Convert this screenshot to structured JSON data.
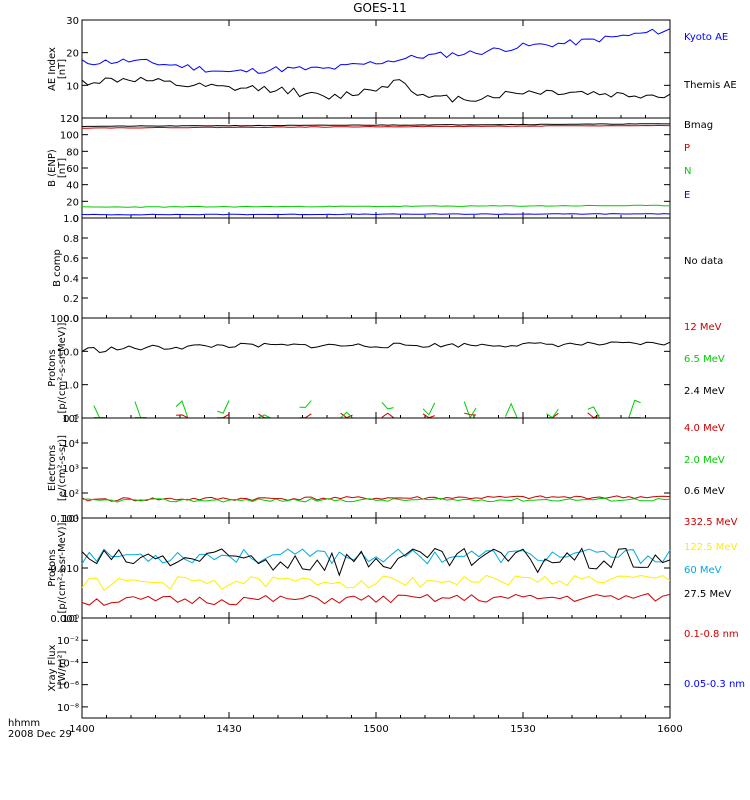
{
  "title": "GOES-11",
  "footer": {
    "line1": "hhmm",
    "line2": "2008 Dec 29"
  },
  "x_ticks": [
    "1400",
    "1430",
    "1500",
    "1530",
    "1600"
  ],
  "chart_data": [
    {
      "type": "line",
      "ylabel": [
        "AE Index",
        "[nT]"
      ],
      "ylim": [
        0,
        30
      ],
      "y_ticks": [
        "0",
        "10",
        "20",
        "30"
      ],
      "series": [
        {
          "name": "Kyoto AE",
          "color": "#0000ff",
          "mode": "trend",
          "anchors": [
            [
              0,
              17
            ],
            [
              10,
              17.5
            ],
            [
              20,
              16
            ],
            [
              30,
              14
            ],
            [
              40,
              15
            ],
            [
              50,
              15
            ],
            [
              60,
              17
            ],
            [
              70,
              19
            ],
            [
              80,
              20
            ],
            [
              90,
              22
            ],
            [
              100,
              23
            ],
            [
              110,
              25
            ],
            [
              120,
              27
            ],
            [
              120,
              30
            ]
          ],
          "amp": 1.0,
          "seed": 11
        },
        {
          "name": "Themis AE",
          "color": "#000000",
          "mode": "trend",
          "anchors": [
            [
              0,
              11
            ],
            [
              10,
              12
            ],
            [
              20,
              10
            ],
            [
              30,
              9
            ],
            [
              40,
              9
            ],
            [
              50,
              6
            ],
            [
              60,
              9
            ],
            [
              65,
              12
            ],
            [
              70,
              6
            ],
            [
              80,
              6
            ],
            [
              90,
              8
            ],
            [
              100,
              8
            ],
            [
              110,
              7
            ],
            [
              120,
              7
            ]
          ],
          "amp": 1.2,
          "seed": 12
        }
      ]
    },
    {
      "type": "line",
      "ylabel": [
        "B (ENP)",
        "[nT]"
      ],
      "ylim": [
        0,
        120
      ],
      "y_ticks": [
        "0",
        "20",
        "40",
        "60",
        "80",
        "100",
        "120"
      ],
      "series": [
        {
          "name": "Bmag",
          "color": "#000000",
          "mode": "trend",
          "anchors": [
            [
              0,
              110
            ],
            [
              120,
              113
            ]
          ],
          "amp": 0.3,
          "seed": 21
        },
        {
          "name": "P",
          "color": "#cc0000",
          "mode": "trend",
          "anchors": [
            [
              0,
              108
            ],
            [
              120,
              111
            ]
          ],
          "amp": 0.3,
          "seed": 22
        },
        {
          "name": "N",
          "color": "#00cc00",
          "mode": "trend",
          "anchors": [
            [
              0,
              13
            ],
            [
              120,
              15
            ]
          ],
          "amp": 0.5,
          "seed": 23
        },
        {
          "name": "E",
          "color": "#0000ff",
          "mode": "trend",
          "anchors": [
            [
              0,
              4
            ],
            [
              120,
              5
            ]
          ],
          "amp": 0.4,
          "seed": 24
        }
      ]
    },
    {
      "type": "line",
      "ylabel": [
        "B comp"
      ],
      "ylim": [
        0,
        1
      ],
      "y_ticks": [
        "0.0",
        "0.2",
        "0.4",
        "0.6",
        "0.8",
        "1.0"
      ],
      "series": [],
      "legend_text": [
        {
          "label": "No data",
          "color": "#000000"
        }
      ]
    },
    {
      "type": "line",
      "ylabel": [
        "Protons",
        "[p/(cm²-s-sr-MeV)]"
      ],
      "ylim": [
        0.1,
        100
      ],
      "log": true,
      "y_ticks": [
        "0.1",
        "1.0",
        "10.0",
        "100.0"
      ],
      "series": [
        {
          "name": "12 MeV",
          "color": "#cc0000",
          "mode": "sparse",
          "anchors": [
            [
              0,
              0.1
            ],
            [
              120,
              0.1
            ]
          ],
          "amp": 0.05,
          "seed": 31
        },
        {
          "name": "6.5 MeV",
          "color": "#00cc00",
          "mode": "sparse",
          "anchors": [
            [
              0,
              0.2
            ],
            [
              120,
              0.2
            ]
          ],
          "amp": 0.15,
          "seed": 32
        },
        {
          "name": "2.4 MeV",
          "color": "#000000",
          "mode": "trend",
          "anchors": [
            [
              0,
              11
            ],
            [
              30,
              15
            ],
            [
              60,
              15
            ],
            [
              90,
              16
            ],
            [
              120,
              17
            ]
          ],
          "amp": 2.5,
          "seed": 33
        }
      ]
    },
    {
      "type": "line",
      "ylabel": [
        "Electrons",
        "[e/(cm²-s-sr)]"
      ],
      "ylim": [
        10,
        100000
      ],
      "log": true,
      "y_ticks": [
        "10¹",
        "10²",
        "10³",
        "10⁴",
        "10⁵"
      ],
      "series": [
        {
          "name": "4.0 MeV",
          "color": "#cc0000",
          "mode": "trend",
          "anchors": [
            [
              0,
              55
            ],
            [
              120,
              70
            ]
          ],
          "amp": 10,
          "seed": 41
        },
        {
          "name": "2.0 MeV",
          "color": "#00cc00",
          "mode": "trend",
          "anchors": [
            [
              0,
              50
            ],
            [
              120,
              55
            ]
          ],
          "amp": 8,
          "seed": 42
        },
        {
          "name": "0.6 MeV",
          "color": "#000000",
          "mode": "trend",
          "anchors": [
            [
              0,
              100000
            ],
            [
              120,
              100000
            ]
          ],
          "amp": 0,
          "seed": 43
        }
      ]
    },
    {
      "type": "line",
      "ylabel": [
        "Protons",
        "[p/(cm²-s-sr-MeV)]"
      ],
      "ylim": [
        0.001,
        0.1
      ],
      "log": true,
      "y_ticks": [
        "0.001",
        "0.010",
        "0.100"
      ],
      "series": [
        {
          "name": "332.5 MeV",
          "color": "#cc0000",
          "mode": "noisy",
          "anchors": [
            [
              0,
              0.0022
            ],
            [
              120,
              0.0026
            ]
          ],
          "amp": 0.0005,
          "seed": 51
        },
        {
          "name": "122.5 MeV",
          "color": "#ffee00",
          "mode": "noisy",
          "anchors": [
            [
              0,
              0.005
            ],
            [
              120,
              0.006
            ]
          ],
          "amp": 0.0015,
          "seed": 52
        },
        {
          "name": "60 MeV",
          "color": "#00aadd",
          "mode": "noisy",
          "anchors": [
            [
              0,
              0.018
            ],
            [
              120,
              0.018
            ]
          ],
          "amp": 0.006,
          "seed": 53
        },
        {
          "name": "27.5 MeV",
          "color": "#000000",
          "mode": "noisy",
          "anchors": [
            [
              0,
              0.015
            ],
            [
              120,
              0.016
            ]
          ],
          "amp": 0.009,
          "seed": 54
        }
      ]
    },
    {
      "type": "line",
      "ylabel": [
        "Xray Flux",
        "[W/m²]"
      ],
      "ylim": [
        1e-09,
        1
      ],
      "log": true,
      "y_ticks": [
        "10⁻⁸",
        "10⁻⁶",
        "10⁻⁴",
        "10⁻²",
        "10⁰"
      ],
      "series": [
        {
          "name": "0.1-0.8 nm",
          "color": "#cc0000",
          "mode": "none",
          "anchors": [],
          "amp": 0,
          "seed": 61
        },
        {
          "name": "0.05-0.3 nm",
          "color": "#0000ff",
          "mode": "none",
          "anchors": [],
          "amp": 0,
          "seed": 62
        }
      ]
    }
  ]
}
